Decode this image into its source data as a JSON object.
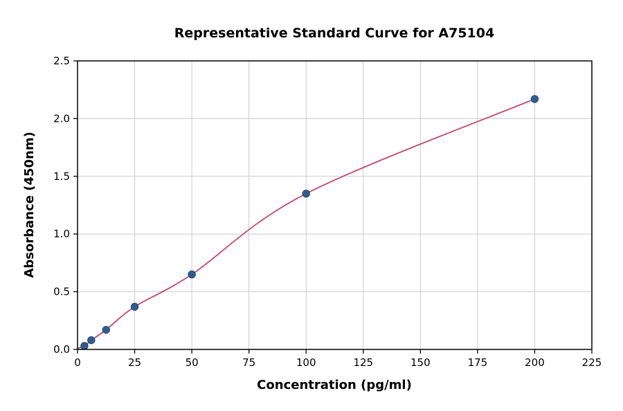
{
  "chart_data": {
    "type": "scatter",
    "title": "Representative Standard Curve for A75104",
    "xlabel": "Concentration (pg/ml)",
    "ylabel": "Absorbance (450nm)",
    "xlim": [
      0,
      225
    ],
    "ylim": [
      0,
      2.5
    ],
    "x_ticks": [
      0,
      25,
      50,
      75,
      100,
      125,
      150,
      175,
      200,
      225
    ],
    "y_ticks": [
      0.0,
      0.5,
      1.0,
      1.5,
      2.0,
      2.5
    ],
    "grid": true,
    "legend": "none",
    "points": [
      {
        "x": 3,
        "y": 0.03
      },
      {
        "x": 6,
        "y": 0.08
      },
      {
        "x": 12.5,
        "y": 0.17
      },
      {
        "x": 25,
        "y": 0.37
      },
      {
        "x": 50,
        "y": 0.65
      },
      {
        "x": 100,
        "y": 1.35
      },
      {
        "x": 200,
        "y": 2.17
      }
    ],
    "curve_start": {
      "x": 0,
      "y": 0.01
    },
    "colors": {
      "point": "#2e5e8e",
      "point_edge": "#24496f",
      "curve": "#c0496a",
      "grid": "#cccccc",
      "axis": "#000000",
      "background": "#ffffff"
    }
  }
}
